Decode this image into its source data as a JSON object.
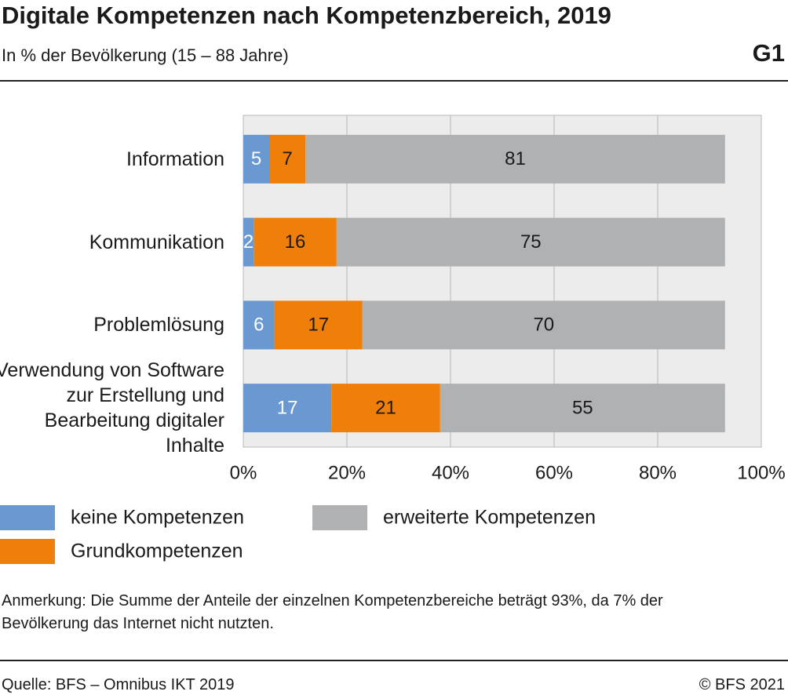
{
  "chart_data": {
    "type": "bar",
    "title": "Digitale Kompetenzen nach Kompetenzbereich, 2019",
    "subtitle": "In % der Bevölkerung (15 – 88 Jahre)",
    "chart_id": "G1",
    "categories": [
      "Information",
      "Kommunikation",
      "Problemlösung",
      "Verwendung von Software zur Erstellung und Bearbeitung digitaler Inhalte"
    ],
    "series": [
      {
        "name": "keine Kompetenzen",
        "color": "#6a98d0",
        "label_color": "#ffffff",
        "values": [
          5,
          2,
          6,
          17
        ]
      },
      {
        "name": "Grundkompetenzen",
        "color": "#f07f09",
        "label_color": "#1a1a1a",
        "values": [
          7,
          16,
          17,
          21
        ]
      },
      {
        "name": "erweiterte Kompetenzen",
        "color": "#b0b1b3",
        "label_color": "#1a1a1a",
        "values": [
          81,
          75,
          70,
          55
        ]
      }
    ],
    "xlim": [
      0,
      100
    ],
    "xticks": [
      {
        "value": 0,
        "label": "0%"
      },
      {
        "value": 20,
        "label": "20%"
      },
      {
        "value": 40,
        "label": "40%"
      },
      {
        "value": 60,
        "label": "60%"
      },
      {
        "value": 80,
        "label": "80%"
      },
      {
        "value": 100,
        "label": "100%"
      }
    ],
    "grid": true,
    "note": "Anmerkung: Die Summe der Anteile der einzelnen Kompetenzbereiche beträgt 93%, da 7% der Bevölkerung das Internet nicht nutzten.",
    "source": "Quelle: BFS – Omnibus IKT 2019",
    "copyright": "© BFS 2021"
  }
}
